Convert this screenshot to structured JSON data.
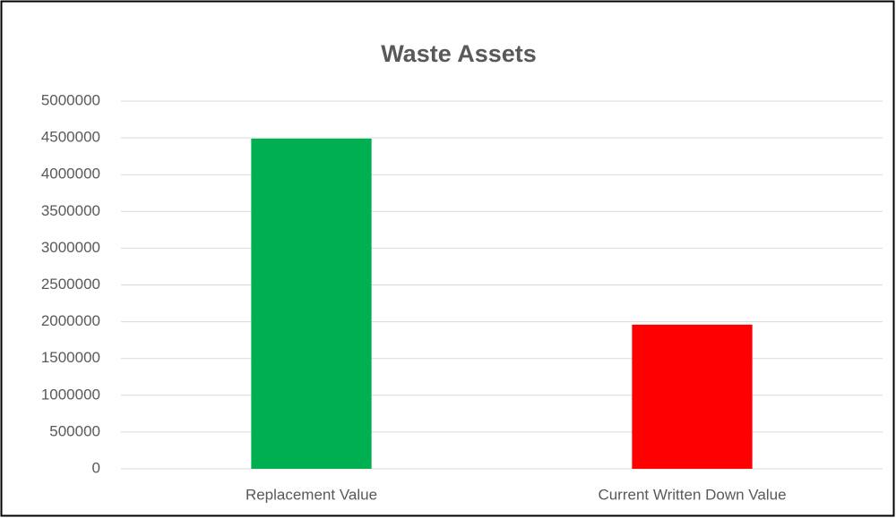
{
  "chart_data": {
    "type": "bar",
    "title": "Waste Assets",
    "categories": [
      "Replacement Value",
      "Current Written Down Value"
    ],
    "values": [
      4490000,
      1960000
    ],
    "colors": [
      "#00b050",
      "#ff0000"
    ],
    "ylim": [
      0,
      5000000
    ],
    "yticks": [
      0,
      500000,
      1000000,
      1500000,
      2000000,
      2500000,
      3000000,
      3500000,
      4000000,
      4500000,
      5000000
    ],
    "grid": true
  }
}
